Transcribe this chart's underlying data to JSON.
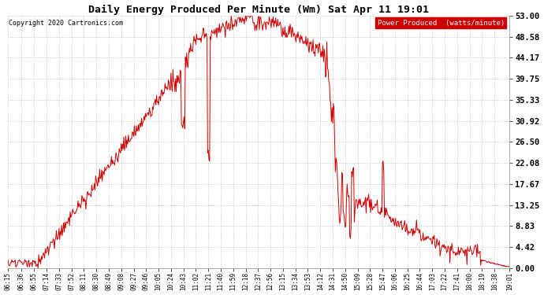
{
  "title": "Daily Energy Produced Per Minute (Wm) Sat Apr 11 19:01",
  "copyright": "Copyright 2020 Cartronics.com",
  "legend_label": "Power Produced  (watts/minute)",
  "legend_bg": "#cc0000",
  "line_color": "#cc0000",
  "bg_color": "#ffffff",
  "plot_bg_color": "#ffffff",
  "grid_color": "#bbbbbb",
  "title_color": "#000000",
  "yticks": [
    0.0,
    4.42,
    8.83,
    13.25,
    17.67,
    22.08,
    26.5,
    30.92,
    35.33,
    39.75,
    44.17,
    48.58,
    53.0
  ],
  "ymax": 53.0,
  "ymin": 0.0,
  "xtick_labels": [
    "06:15",
    "06:36",
    "06:55",
    "07:14",
    "07:33",
    "07:52",
    "08:11",
    "08:30",
    "08:49",
    "09:08",
    "09:27",
    "09:46",
    "10:05",
    "10:24",
    "10:43",
    "11:02",
    "11:21",
    "11:40",
    "11:59",
    "12:18",
    "12:37",
    "12:56",
    "13:15",
    "13:34",
    "13:53",
    "14:12",
    "14:31",
    "14:50",
    "15:09",
    "15:28",
    "15:47",
    "16:06",
    "16:25",
    "16:44",
    "17:03",
    "17:22",
    "17:41",
    "18:00",
    "18:19",
    "18:38",
    "19:01"
  ]
}
